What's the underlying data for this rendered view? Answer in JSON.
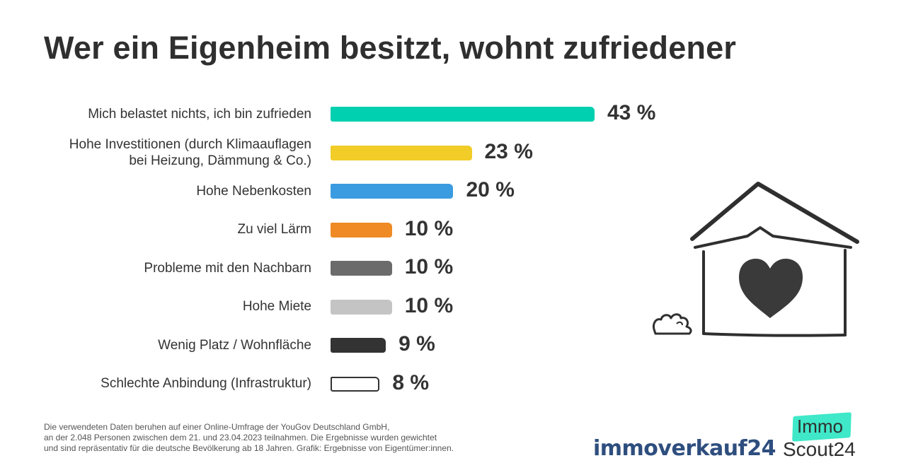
{
  "title": "Wer ein Eigenheim besitzt, wohnt zufriedener",
  "chart_data": {
    "type": "bar",
    "orientation": "horizontal",
    "title": "Wer ein Eigenheim besitzt, wohnt zufriedener",
    "xlabel": "",
    "ylabel": "",
    "xlim": [
      0,
      43
    ],
    "grid": false,
    "categories": [
      [
        "Mich belastet nichts, ich bin zufrieden"
      ],
      [
        "Hohe Investitionen (durch Klimaauflagen",
        "bei Heizung, Dämmung & Co.)"
      ],
      [
        "Hohe Nebenkosten"
      ],
      [
        "Zu viel Lärm"
      ],
      [
        "Probleme mit den Nachbarn"
      ],
      [
        "Hohe Miete"
      ],
      [
        "Wenig Platz / Wohnfläche"
      ],
      [
        "Schlechte Anbindung (Infrastruktur)"
      ]
    ],
    "values": [
      43,
      23,
      20,
      10,
      10,
      10,
      9,
      8
    ],
    "value_labels": [
      "43 %",
      "23 %",
      "20 %",
      "10 %",
      "10 %",
      "10 %",
      "9 %",
      "8 %"
    ],
    "colors": [
      "#00cfb0",
      "#f2cc27",
      "#3a9be0",
      "#ef8a24",
      "#6b6b6b",
      "#c4c4c4",
      "#333333",
      "#ffffff"
    ]
  },
  "footnote": [
    "Die verwendeten Daten beruhen auf einer Online-Umfrage der YouGov Deutschland GmbH,",
    "an der 2.048 Personen zwischen dem 21. und 23.04.2023 teilnahmen. Die Ergebnisse wurden gewichtet",
    "und sind repräsentativ für die deutsche Bevölkerung ab 18 Jahren. Grafik: Ergebnisse von Eigentümer:innen."
  ],
  "logos": {
    "immoverkauf": "immoverkauf24",
    "immo": "Immo",
    "scout": "Scout24",
    "scout_badge_color": "#3fe8c8"
  },
  "icons": [
    "house-with-heart-icon"
  ]
}
